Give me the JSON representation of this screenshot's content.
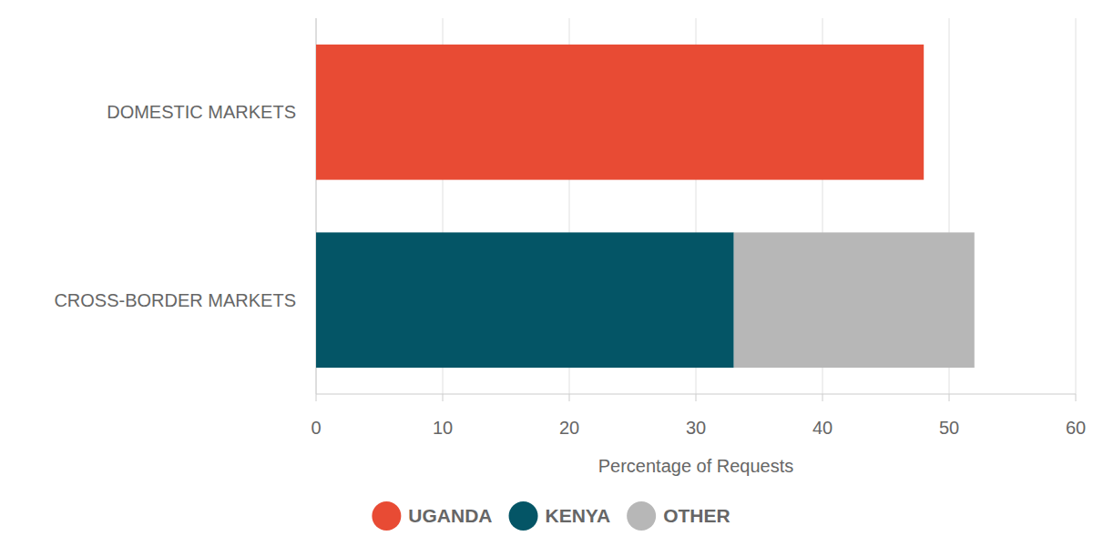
{
  "chart_data": {
    "type": "bar",
    "orientation": "horizontal",
    "stacked": true,
    "categories": [
      "DOMESTIC MARKETS",
      "CROSS-BORDER MARKETS"
    ],
    "series": [
      {
        "name": "UGANDA",
        "color": "#e84b34",
        "values": [
          48,
          null
        ]
      },
      {
        "name": "KENYA",
        "color": "#045566",
        "values": [
          null,
          33
        ]
      },
      {
        "name": "OTHER",
        "color": "#b7b7b7",
        "values": [
          null,
          19
        ]
      }
    ],
    "xlabel": "Percentage of Requests",
    "xlim": [
      0,
      60
    ],
    "xticks": [
      0,
      10,
      20,
      30,
      40,
      50,
      60
    ],
    "grid": true,
    "legend": "bottom"
  }
}
